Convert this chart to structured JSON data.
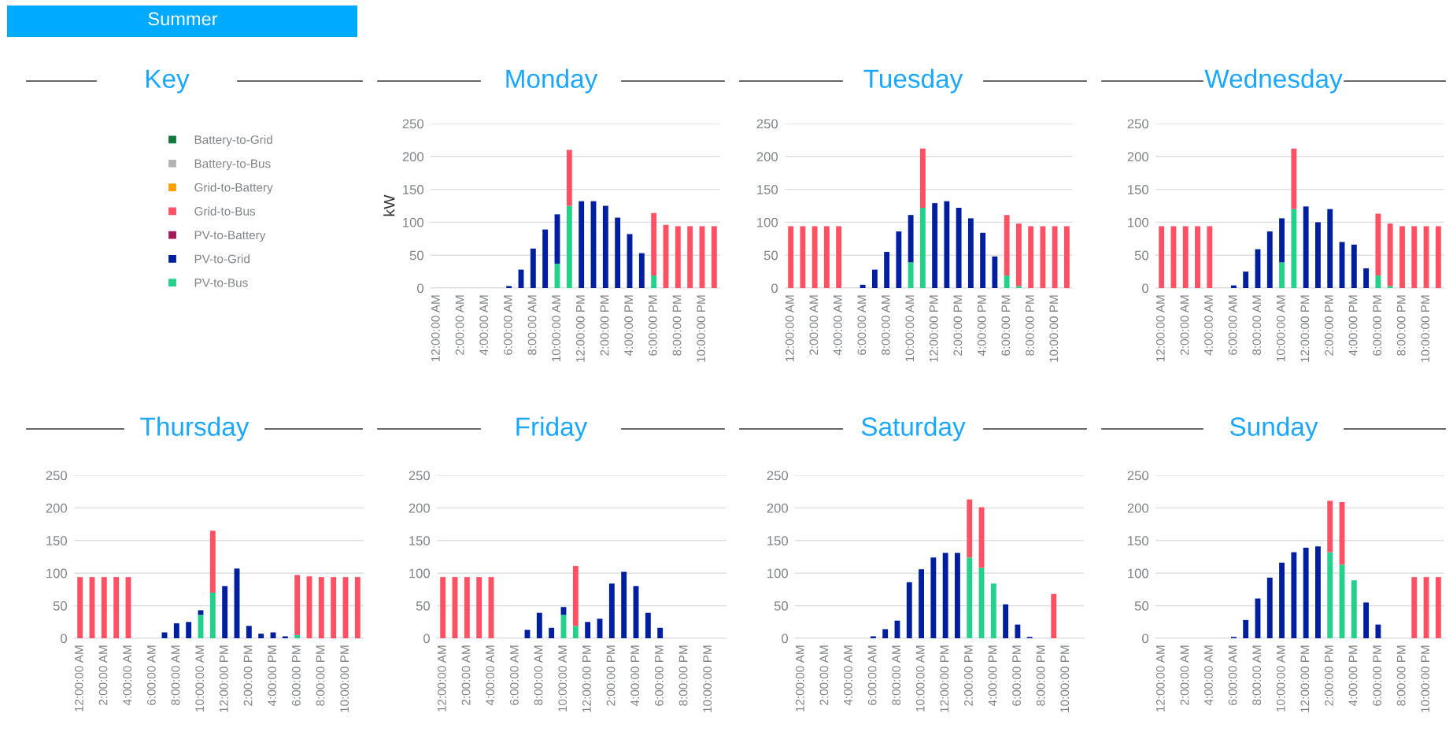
{
  "chart_data": [
    {
      "type": "bar",
      "stacked": true,
      "title": "Monday",
      "ylabel": "kW",
      "legend": "left",
      "legend_title": "Key",
      "annotations": [
        "Summer"
      ],
      "grid": "y",
      "ylim": [
        0,
        250
      ],
      "yticks": [
        0,
        50,
        100,
        150,
        200,
        250
      ],
      "categories": [
        "12:00:00 AM",
        null,
        "2:00:00 AM",
        null,
        "4:00:00 AM",
        null,
        "6:00:00 AM",
        null,
        "8:00:00 AM",
        null,
        "10:00:00 AM",
        null,
        "12:00:00 PM",
        null,
        "2:00:00 PM",
        null,
        "4:00:00 PM",
        null,
        "6:00:00 PM",
        null,
        "8:00:00 PM",
        null,
        "10:00:00 PM",
        null
      ],
      "series": [
        {
          "name": "PV-to-Bus",
          "color": "#23d18b",
          "values": [
            0,
            0,
            0,
            0,
            0,
            0,
            0,
            0,
            0,
            0,
            37,
            125,
            0,
            0,
            0,
            0,
            0,
            0,
            19,
            0,
            0,
            0,
            0,
            0
          ]
        },
        {
          "name": "PV-to-Grid",
          "color": "#001f9f",
          "values": [
            0,
            0,
            0,
            0,
            0,
            0,
            3,
            28,
            60,
            89,
            75,
            0,
            132,
            132,
            125,
            107,
            82,
            53,
            0,
            0,
            0,
            0,
            0,
            0
          ]
        },
        {
          "name": "PV-to-Battery",
          "color": "#a3195b",
          "values": [
            null,
            null,
            null,
            null,
            null,
            null,
            null,
            null,
            null,
            null,
            null,
            null,
            null,
            null,
            null,
            null,
            null,
            null,
            null,
            null,
            null,
            null,
            null,
            null
          ]
        },
        {
          "name": "Grid-to-Bus",
          "color": "#ff5064",
          "values": [
            0,
            0,
            0,
            0,
            0,
            0,
            0,
            0,
            0,
            0,
            0,
            85,
            0,
            0,
            0,
            0,
            0,
            0,
            95,
            96,
            94,
            94,
            94,
            94
          ]
        },
        {
          "name": "Grid-to-Battery",
          "color": "#ffa000",
          "values": [
            null,
            null,
            null,
            null,
            null,
            null,
            null,
            null,
            null,
            null,
            null,
            null,
            null,
            null,
            null,
            null,
            null,
            null,
            null,
            null,
            null,
            null,
            null,
            null
          ]
        },
        {
          "name": "Battery-to-Bus",
          "color": "#b3b3b3",
          "values": [
            null,
            null,
            null,
            null,
            null,
            null,
            null,
            null,
            null,
            null,
            null,
            null,
            null,
            null,
            null,
            null,
            null,
            null,
            null,
            null,
            null,
            null,
            null,
            null
          ]
        },
        {
          "name": "Battery-to-Grid",
          "color": "#137a3f",
          "values": [
            null,
            null,
            null,
            null,
            null,
            null,
            null,
            null,
            null,
            null,
            null,
            null,
            null,
            null,
            null,
            null,
            null,
            null,
            null,
            null,
            null,
            null,
            null,
            null
          ]
        }
      ]
    },
    {
      "type": "bar",
      "stacked": true,
      "title": "Tuesday",
      "grid": "y",
      "ylim": [
        0,
        250
      ],
      "yticks": [
        0,
        50,
        100,
        150,
        200,
        250
      ],
      "categories": [
        "12:00:00 AM",
        null,
        "2:00:00 AM",
        null,
        "4:00:00 AM",
        null,
        "6:00:00 AM",
        null,
        "8:00:00 AM",
        null,
        "10:00:00 AM",
        null,
        "12:00:00 PM",
        null,
        "2:00:00 PM",
        null,
        "4:00:00 PM",
        null,
        "6:00:00 PM",
        null,
        "8:00:00 PM",
        null,
        "10:00:00 PM",
        null
      ],
      "series": [
        {
          "color": "#23d18b",
          "values": [
            0,
            0,
            0,
            0,
            0,
            0,
            0,
            0,
            0,
            0,
            39,
            122,
            0,
            0,
            0,
            0,
            0,
            0,
            19,
            3,
            0,
            0,
            0,
            0
          ]
        },
        {
          "color": "#001f9f",
          "values": [
            0,
            0,
            0,
            0,
            0,
            0,
            5,
            28,
            55,
            86,
            72,
            0,
            129,
            132,
            122,
            106,
            84,
            48,
            0,
            0,
            0,
            0,
            0,
            0
          ]
        },
        {
          "color": "#ff5064",
          "values": [
            94,
            94,
            94,
            94,
            94,
            0,
            0,
            0,
            0,
            0,
            0,
            90,
            0,
            0,
            0,
            0,
            0,
            0,
            92,
            95,
            94,
            94,
            94,
            94
          ]
        }
      ]
    },
    {
      "type": "bar",
      "stacked": true,
      "title": "Wednesday",
      "grid": "y",
      "ylim": [
        0,
        250
      ],
      "yticks": [
        0,
        50,
        100,
        150,
        200,
        250
      ],
      "categories": [
        "12:00:00 AM",
        null,
        "2:00:00 AM",
        null,
        "4:00:00 AM",
        null,
        "6:00:00 AM",
        null,
        "8:00:00 AM",
        null,
        "10:00:00 AM",
        null,
        "12:00:00 PM",
        null,
        "2:00:00 PM",
        null,
        "4:00:00 PM",
        null,
        "6:00:00 PM",
        null,
        "8:00:00 PM",
        null,
        "10:00:00 PM",
        null
      ],
      "series": [
        {
          "color": "#23d18b",
          "values": [
            0,
            0,
            0,
            0,
            0,
            0,
            0,
            0,
            0,
            0,
            39,
            120,
            0,
            0,
            0,
            0,
            0,
            0,
            19,
            3,
            0,
            0,
            0,
            0
          ]
        },
        {
          "color": "#001f9f",
          "values": [
            0,
            0,
            0,
            0,
            0,
            0,
            4,
            25,
            59,
            86,
            67,
            0,
            124,
            100,
            120,
            70,
            66,
            30,
            0,
            0,
            0,
            0,
            0,
            0
          ]
        },
        {
          "color": "#ff5064",
          "values": [
            94,
            94,
            94,
            94,
            94,
            0,
            0,
            0,
            0,
            0,
            0,
            92,
            0,
            0,
            0,
            0,
            0,
            0,
            94,
            95,
            94,
            94,
            94,
            94
          ]
        }
      ]
    },
    {
      "type": "bar",
      "stacked": true,
      "title": "Thursday",
      "grid": "y",
      "ylim": [
        0,
        250
      ],
      "yticks": [
        0,
        50,
        100,
        150,
        200,
        250
      ],
      "categories": [
        "12:00:00 AM",
        null,
        "2:00:00 AM",
        null,
        "4:00:00 AM",
        null,
        "6:00:00 AM",
        null,
        "8:00:00 AM",
        null,
        "10:00:00 AM",
        null,
        "12:00:00 PM",
        null,
        "2:00:00 PM",
        null,
        "4:00:00 PM",
        null,
        "6:00:00 PM",
        null,
        "8:00:00 PM",
        null,
        "10:00:00 PM",
        null
      ],
      "series": [
        {
          "color": "#23d18b",
          "values": [
            0,
            0,
            0,
            0,
            0,
            0,
            0,
            0,
            0,
            0,
            36,
            70,
            0,
            0,
            0,
            0,
            0,
            0,
            5,
            0,
            0,
            0,
            0,
            0
          ]
        },
        {
          "color": "#001f9f",
          "values": [
            0,
            0,
            0,
            0,
            0,
            0,
            0,
            9,
            23,
            25,
            7,
            0,
            80,
            107,
            19,
            7,
            9,
            3,
            0,
            0,
            0,
            0,
            0,
            0
          ]
        },
        {
          "color": "#ff5064",
          "values": [
            94,
            94,
            94,
            94,
            94,
            0,
            0,
            0,
            0,
            0,
            0,
            95,
            0,
            0,
            0,
            0,
            0,
            0,
            92,
            95,
            94,
            94,
            94,
            94
          ]
        }
      ]
    },
    {
      "type": "bar",
      "stacked": true,
      "title": "Friday",
      "grid": "y",
      "ylim": [
        0,
        250
      ],
      "yticks": [
        0,
        50,
        100,
        150,
        200,
        250
      ],
      "categories": [
        "12:00:00 AM",
        null,
        "2:00:00 AM",
        null,
        "4:00:00 AM",
        null,
        "6:00:00 AM",
        null,
        "8:00:00 AM",
        null,
        "10:00:00 AM",
        null,
        "12:00:00 PM",
        null,
        "2:00:00 PM",
        null,
        "4:00:00 PM",
        null,
        "6:00:00 PM",
        null,
        "8:00:00 PM",
        null,
        "10:00:00 PM",
        null
      ],
      "series": [
        {
          "color": "#23d18b",
          "values": [
            0,
            0,
            0,
            0,
            0,
            0,
            0,
            0,
            0,
            0,
            36,
            19,
            0,
            0,
            0,
            0,
            0,
            0,
            0,
            0,
            0,
            0,
            0,
            0
          ]
        },
        {
          "color": "#001f9f",
          "values": [
            0,
            0,
            0,
            0,
            0,
            0,
            0,
            13,
            39,
            16,
            12,
            0,
            25,
            30,
            84,
            102,
            80,
            39,
            16,
            0,
            0,
            0,
            0,
            0
          ]
        },
        {
          "color": "#ff5064",
          "values": [
            94,
            94,
            94,
            94,
            94,
            0,
            0,
            0,
            0,
            0,
            0,
            92,
            0,
            0,
            0,
            0,
            0,
            0,
            0,
            0,
            0,
            0,
            0,
            0
          ]
        }
      ]
    },
    {
      "type": "bar",
      "stacked": true,
      "title": "Saturday",
      "grid": "y",
      "ylim": [
        0,
        250
      ],
      "yticks": [
        0,
        50,
        100,
        150,
        200,
        250
      ],
      "categories": [
        "12:00:00 AM",
        null,
        "2:00:00 AM",
        null,
        "4:00:00 AM",
        null,
        "6:00:00 AM",
        null,
        "8:00:00 AM",
        null,
        "10:00:00 AM",
        null,
        "12:00:00 PM",
        null,
        "2:00:00 PM",
        null,
        "4:00:00 PM",
        null,
        "6:00:00 PM",
        null,
        "8:00:00 PM",
        null,
        "10:00:00 PM",
        null
      ],
      "series": [
        {
          "color": "#23d18b",
          "values": [
            0,
            0,
            0,
            0,
            0,
            0,
            0,
            0,
            0,
            0,
            0,
            0,
            0,
            0,
            124,
            108,
            84,
            0,
            0,
            0,
            0,
            0,
            0,
            0
          ]
        },
        {
          "color": "#001f9f",
          "values": [
            0,
            0,
            0,
            0,
            0,
            0,
            3,
            14,
            27,
            86,
            106,
            124,
            131,
            131,
            0,
            0,
            0,
            52,
            21,
            2,
            0,
            0,
            0,
            0
          ]
        },
        {
          "color": "#ff5064",
          "values": [
            0,
            0,
            0,
            0,
            0,
            0,
            0,
            0,
            0,
            0,
            0,
            0,
            0,
            0,
            89,
            93,
            0,
            0,
            0,
            0,
            0,
            68,
            0,
            0
          ]
        }
      ]
    },
    {
      "type": "bar",
      "stacked": true,
      "title": "Sunday",
      "grid": "y",
      "ylim": [
        0,
        250
      ],
      "yticks": [
        0,
        50,
        100,
        150,
        200,
        250
      ],
      "categories": [
        "12:00:00 AM",
        null,
        "2:00:00 AM",
        null,
        "4:00:00 AM",
        null,
        "6:00:00 AM",
        null,
        "8:00:00 AM",
        null,
        "10:00:00 AM",
        null,
        "12:00:00 PM",
        null,
        "2:00:00 PM",
        null,
        "4:00:00 PM",
        null,
        "6:00:00 PM",
        null,
        "8:00:00 PM",
        null,
        "10:00:00 PM",
        null
      ],
      "series": [
        {
          "color": "#23d18b",
          "values": [
            0,
            0,
            0,
            0,
            0,
            0,
            0,
            0,
            0,
            0,
            0,
            0,
            0,
            0,
            132,
            113,
            89,
            0,
            0,
            0,
            0,
            0,
            0,
            0
          ]
        },
        {
          "color": "#001f9f",
          "values": [
            0,
            0,
            0,
            0,
            0,
            0,
            2,
            28,
            61,
            93,
            116,
            132,
            139,
            141,
            0,
            0,
            0,
            55,
            21,
            0,
            0,
            0,
            0,
            0
          ]
        },
        {
          "color": "#ff5064",
          "values": [
            0,
            0,
            0,
            0,
            0,
            0,
            0,
            0,
            0,
            0,
            0,
            0,
            0,
            0,
            79,
            96,
            0,
            0,
            0,
            0,
            0,
            94,
            94,
            94
          ]
        }
      ]
    }
  ]
}
